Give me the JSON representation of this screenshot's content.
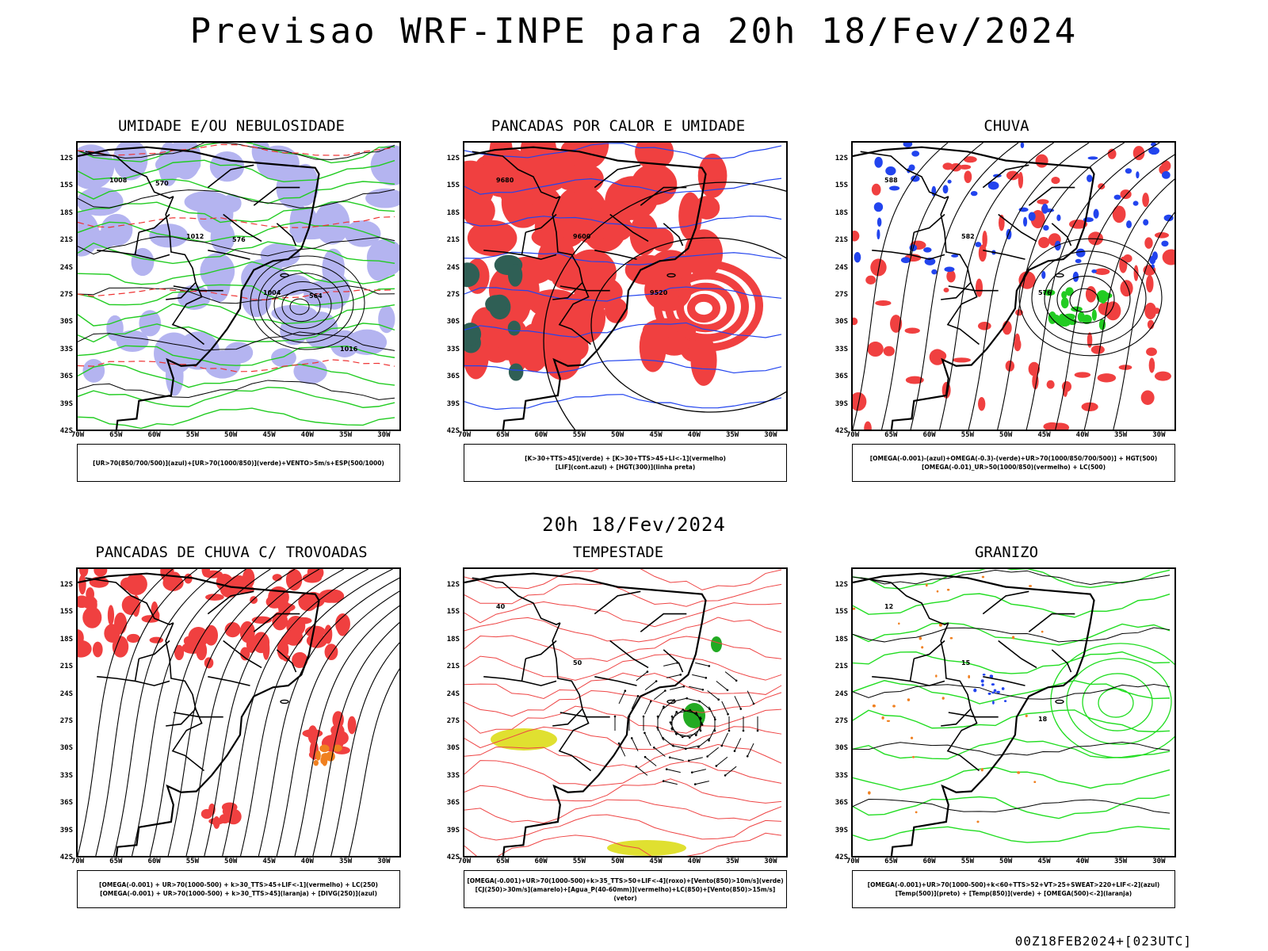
{
  "title": "Previsao WRF-INPE  para 20h 18/Fev/2024",
  "mid_title": "20h 18/Fev/2024",
  "stamp": "00Z18FEB2024+[023UTC]",
  "lat_labels": [
    "12S",
    "15S",
    "18S",
    "21S",
    "24S",
    "27S",
    "30S",
    "33S",
    "36S",
    "39S",
    "42S"
  ],
  "lon_labels": [
    "70W",
    "65W",
    "60W",
    "55W",
    "50W",
    "45W",
    "40W",
    "35W",
    "30W"
  ],
  "panels": [
    {
      "title": "UMIDADE E/OU NEBULOSIDADE",
      "legend": [
        "[UR>70(850/700/500)](azul)+[UR>70(1000/850)](verde)+VENTO>5m/s+ESP(500/1000)"
      ],
      "contour_labels": [
        "1008",
        "1012",
        "1004",
        "1016",
        "570",
        "576",
        "564"
      ],
      "colors": {
        "fill": "#b4b4f0",
        "contour": "#22cc22",
        "line": "#000000",
        "dash": "#ee3333"
      }
    },
    {
      "title": "PANCADAS POR CALOR E UMIDADE",
      "legend": [
        "[K>30+TTS>45](verde) + [K>30+TTS>45+LI<-1](vermelho)",
        "[LIF](cont.azul) + [HGT(300)](linha preta)"
      ],
      "contour_labels": [
        "9680",
        "9600",
        "9520"
      ],
      "colors": {
        "fill": "#f04040",
        "fill2": "#2f5f55",
        "contour": "#2244ee",
        "line": "#000000"
      }
    },
    {
      "title": "CHUVA",
      "legend": [
        "[OMEGA(-0.001)-(azul)+OMEGA(-0.3)-(verde)+UR>70(1000/850/700/500)] + HGT(500)",
        "[OMEGA(-0.01)_UR>50(1000/850)(vermelho) + LC(500)"
      ],
      "contour_labels": [
        "588",
        "582",
        "576"
      ],
      "colors": {
        "fill": "#f04040",
        "fill2": "#2244ee",
        "fill3": "#22cc22",
        "line": "#000000"
      }
    },
    {
      "title": "PANCADAS DE CHUVA C/ TROVOADAS",
      "legend": [
        "[OMEGA(-0.001) + UR>70(1000-500) + k>30_TTS>45+LIF<-1](vermelho) + LC(250)",
        "[OMEGA(-0.001) + UR>70(1000-500) + k>30_TTS>45](laranja) + [DIVG(250)](azul)"
      ],
      "contour_labels": [],
      "colors": {
        "fill": "#f04040",
        "fill2": "#f08020",
        "line": "#000000"
      }
    },
    {
      "title": "TEMPESTADE",
      "legend": [
        "[OMEGA(-0.001)+UR>70(1000-500)+k>35_TTS>50+LIF<-4](roxo)+[Vento(850)>10m/s](verde)",
        "[CJ(250)>30m/s](amarelo)+[Agua_P(40-60mm)](vermelho)+LC(850)+[Vento(850)>15m/s](vetor)"
      ],
      "contour_labels": [
        "40",
        "50"
      ],
      "colors": {
        "fill": "#e0e030",
        "fill2": "#22aa22",
        "contour": "#ee4444",
        "line": "#000000"
      }
    },
    {
      "title": "GRANIZO",
      "legend": [
        "[OMEGA(-0.001)+UR>70(1000-500)+k<60+TTS>52+VT>25+SWEAT>220+LIF<-2](azul)",
        "[Temp(500)](preto) + [Temp(850)](verde) + [OMEGA(500)<-2](laranja)"
      ],
      "contour_labels": [
        "12",
        "15",
        "18"
      ],
      "colors": {
        "contour": "#22dd22",
        "dot": "#f08020",
        "dot2": "#2244ee",
        "line": "#000000"
      }
    }
  ]
}
